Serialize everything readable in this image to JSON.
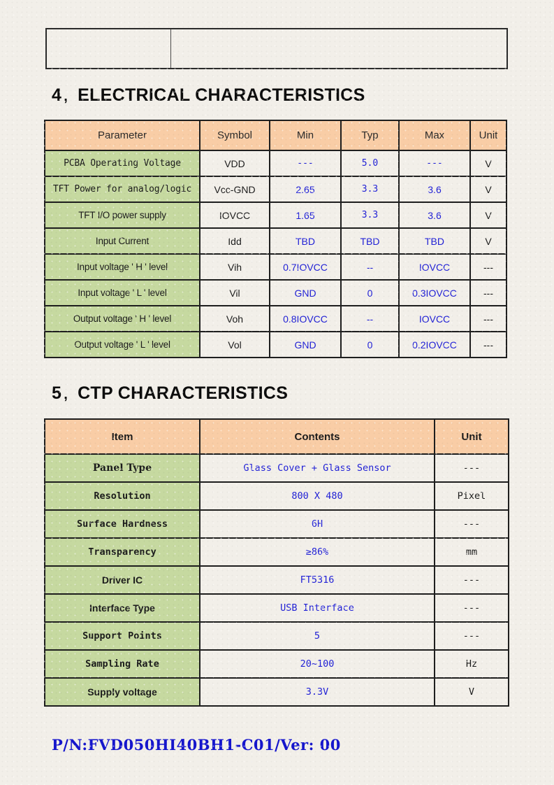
{
  "page": {
    "footer_part_number": "P/N:FVD050HI40BH1-C01/Ver: 00"
  },
  "header_box": {
    "left_cell_text": "",
    "right_cell_text": ""
  },
  "sections": [
    {
      "number": "4",
      "separator": "、",
      "title": "ELECTRICAL CHARACTERISTICS"
    },
    {
      "number": "5",
      "separator": "、",
      "title": "CTP CHARACTERISTICS"
    }
  ],
  "colors": {
    "header_fill": "#f9cda6",
    "row_label_fill": "#c6d9a0",
    "value_text": "#2222d6",
    "border": "#1e1e1e",
    "paper": "#f2efe9",
    "footer_text": "#1616cc"
  },
  "electrical_table": {
    "headers": [
      "Parameter",
      "Symbol",
      "Min",
      "Typ",
      "Max",
      "Unit"
    ],
    "rows": [
      {
        "parameter": "PCBA Operating Voltage",
        "symbol": "VDD",
        "min": "---",
        "typ": "5.0",
        "max": "---",
        "unit": "V"
      },
      {
        "parameter": "TFT Power for analog/logic",
        "symbol": "Vcc-GND",
        "min": "2.65",
        "typ": "3.3",
        "max": "3.6",
        "unit": "V"
      },
      {
        "parameter": "TFT I/O power supply",
        "symbol": "IOVCC",
        "min": "1.65",
        "typ": "3.3",
        "max": "3.6",
        "unit": "V"
      },
      {
        "parameter": "Input Current",
        "symbol": "Idd",
        "min": "TBD",
        "typ": "TBD",
        "max": "TBD",
        "unit": "V"
      },
      {
        "parameter": "Input voltage ' H ' level",
        "symbol": "Vih",
        "min": "0.7IOVCC",
        "typ": "--",
        "max": "IOVCC",
        "unit": "---"
      },
      {
        "parameter": "Input voltage ' L ' level",
        "symbol": "Vil",
        "min": "GND",
        "typ": "0",
        "max": "0.3IOVCC",
        "unit": "---"
      },
      {
        "parameter": "Output voltage ' H ' level",
        "symbol": "Voh",
        "min": "0.8IOVCC",
        "typ": "--",
        "max": "IOVCC",
        "unit": "---"
      },
      {
        "parameter": "Output voltage ' L ' level",
        "symbol": "Vol",
        "min": "GND",
        "typ": "0",
        "max": "0.2IOVCC",
        "unit": "---"
      }
    ]
  },
  "ctp_table": {
    "headers": [
      "Item",
      "Contents",
      "Unit"
    ],
    "rows": [
      {
        "item": "Panel Type",
        "contents": "Glass Cover + Glass Sensor",
        "unit": "---"
      },
      {
        "item": "Resolution",
        "contents": "800 X 480",
        "unit": "Pixel"
      },
      {
        "item": "Surface Hardness",
        "contents": "6H",
        "unit": "---"
      },
      {
        "item": "Transparency",
        "contents": "≥86%",
        "unit": "mm"
      },
      {
        "item": "Driver IC",
        "contents": "FT5316",
        "unit": "---"
      },
      {
        "item": "Interface Type",
        "contents": "USB Interface",
        "unit": "---"
      },
      {
        "item": "Support Points",
        "contents": "5",
        "unit": "---"
      },
      {
        "item": "Sampling Rate",
        "contents": "20~100",
        "unit": "Hz"
      },
      {
        "item": "Supply voltage",
        "contents": "3.3V",
        "unit": "V"
      }
    ]
  }
}
